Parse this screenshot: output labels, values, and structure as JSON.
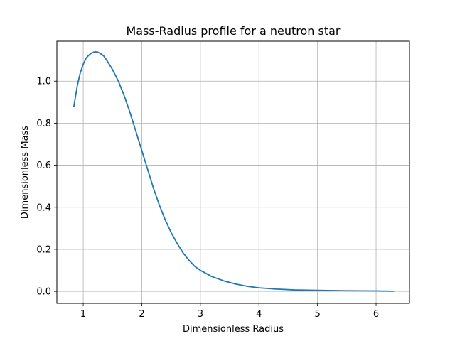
{
  "chart_data": {
    "type": "line",
    "title": "Mass-Radius profile for a neutron star",
    "xlabel": "Dimensionless Radius",
    "ylabel": "Dimensionless Mass",
    "xlim": [
      0.55,
      6.57
    ],
    "ylim": [
      -0.057,
      1.19
    ],
    "xticks": [
      1,
      2,
      3,
      4,
      5,
      6
    ],
    "yticks": [
      0.0,
      0.2,
      0.4,
      0.6,
      0.8,
      1.0
    ],
    "xtick_labels": [
      "1",
      "2",
      "3",
      "4",
      "5",
      "6"
    ],
    "ytick_labels": [
      "0.0",
      "0.2",
      "0.4",
      "0.6",
      "0.8",
      "1.0"
    ],
    "grid": true,
    "series": [
      {
        "color": "#1f77b4",
        "x": [
          0.84,
          0.9,
          0.95,
          1.0,
          1.05,
          1.1,
          1.15,
          1.2,
          1.25,
          1.3,
          1.35,
          1.4,
          1.5,
          1.6,
          1.7,
          1.8,
          1.9,
          2.0,
          2.1,
          2.2,
          2.3,
          2.4,
          2.5,
          2.6,
          2.7,
          2.8,
          2.9,
          3.0,
          3.2,
          3.4,
          3.6,
          3.8,
          4.0,
          4.3,
          4.6,
          5.0,
          5.5,
          6.0,
          6.3
        ],
        "y": [
          0.88,
          0.98,
          1.04,
          1.08,
          1.11,
          1.125,
          1.135,
          1.14,
          1.138,
          1.13,
          1.12,
          1.1,
          1.055,
          1.0,
          0.93,
          0.85,
          0.76,
          0.67,
          0.58,
          0.49,
          0.41,
          0.34,
          0.28,
          0.23,
          0.185,
          0.15,
          0.12,
          0.1,
          0.07,
          0.05,
          0.035,
          0.024,
          0.017,
          0.011,
          0.007,
          0.005,
          0.003,
          0.002,
          0.001
        ]
      }
    ]
  }
}
